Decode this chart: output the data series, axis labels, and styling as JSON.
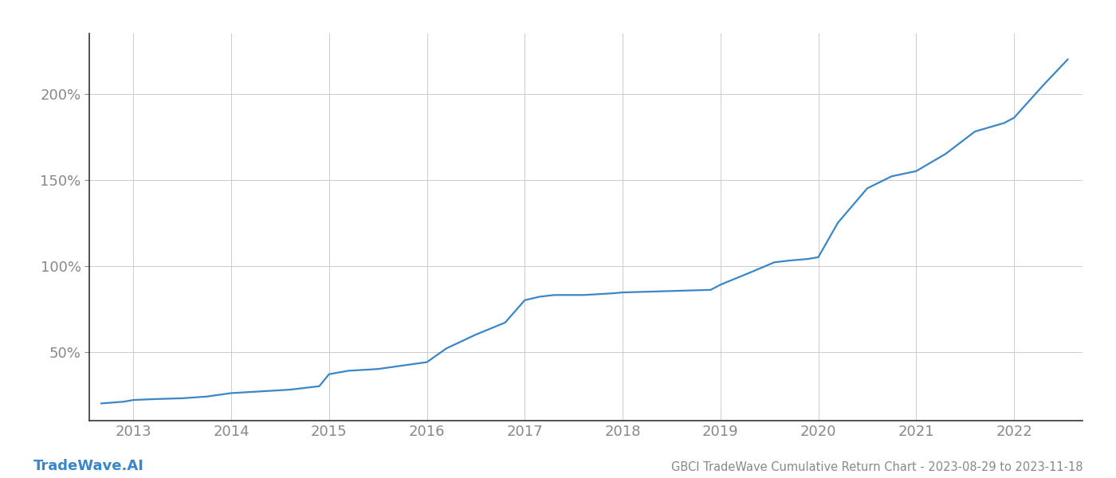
{
  "title": "GBCI TradeWave Cumulative Return Chart - 2023-08-29 to 2023-11-18",
  "watermark": "TradeWave.AI",
  "line_color": "#3a86c8",
  "background_color": "#ffffff",
  "grid_color": "#cccccc",
  "spine_color": "#333333",
  "tick_color": "#888888",
  "x_years": [
    2013,
    2014,
    2015,
    2016,
    2017,
    2018,
    2019,
    2020,
    2021,
    2022
  ],
  "x_data": [
    2012.67,
    2012.9,
    2013.0,
    2013.2,
    2013.5,
    2013.75,
    2014.0,
    2014.3,
    2014.6,
    2014.9,
    2015.0,
    2015.2,
    2015.5,
    2015.75,
    2016.0,
    2016.2,
    2016.5,
    2016.8,
    2017.0,
    2017.15,
    2017.3,
    2017.6,
    2017.9,
    2018.0,
    2018.3,
    2018.6,
    2018.9,
    2019.0,
    2019.3,
    2019.55,
    2019.7,
    2019.9,
    2020.0,
    2020.2,
    2020.5,
    2020.75,
    2021.0,
    2021.3,
    2021.6,
    2021.9,
    2022.0,
    2022.3,
    2022.55
  ],
  "y_data": [
    20,
    21,
    22,
    22.5,
    23,
    24,
    26,
    27,
    28,
    30,
    37,
    39,
    40,
    42,
    44,
    52,
    60,
    67,
    80,
    82,
    83,
    83,
    84,
    84.5,
    85,
    85.5,
    86,
    89,
    96,
    102,
    103,
    104,
    105,
    125,
    145,
    152,
    155,
    165,
    178,
    183,
    186,
    205,
    220
  ],
  "yticks": [
    50,
    100,
    150,
    200
  ],
  "ylim": [
    10,
    235
  ],
  "xlim": [
    2012.55,
    2022.7
  ],
  "title_fontsize": 10.5,
  "tick_fontsize": 13,
  "watermark_fontsize": 13,
  "line_width": 1.6
}
